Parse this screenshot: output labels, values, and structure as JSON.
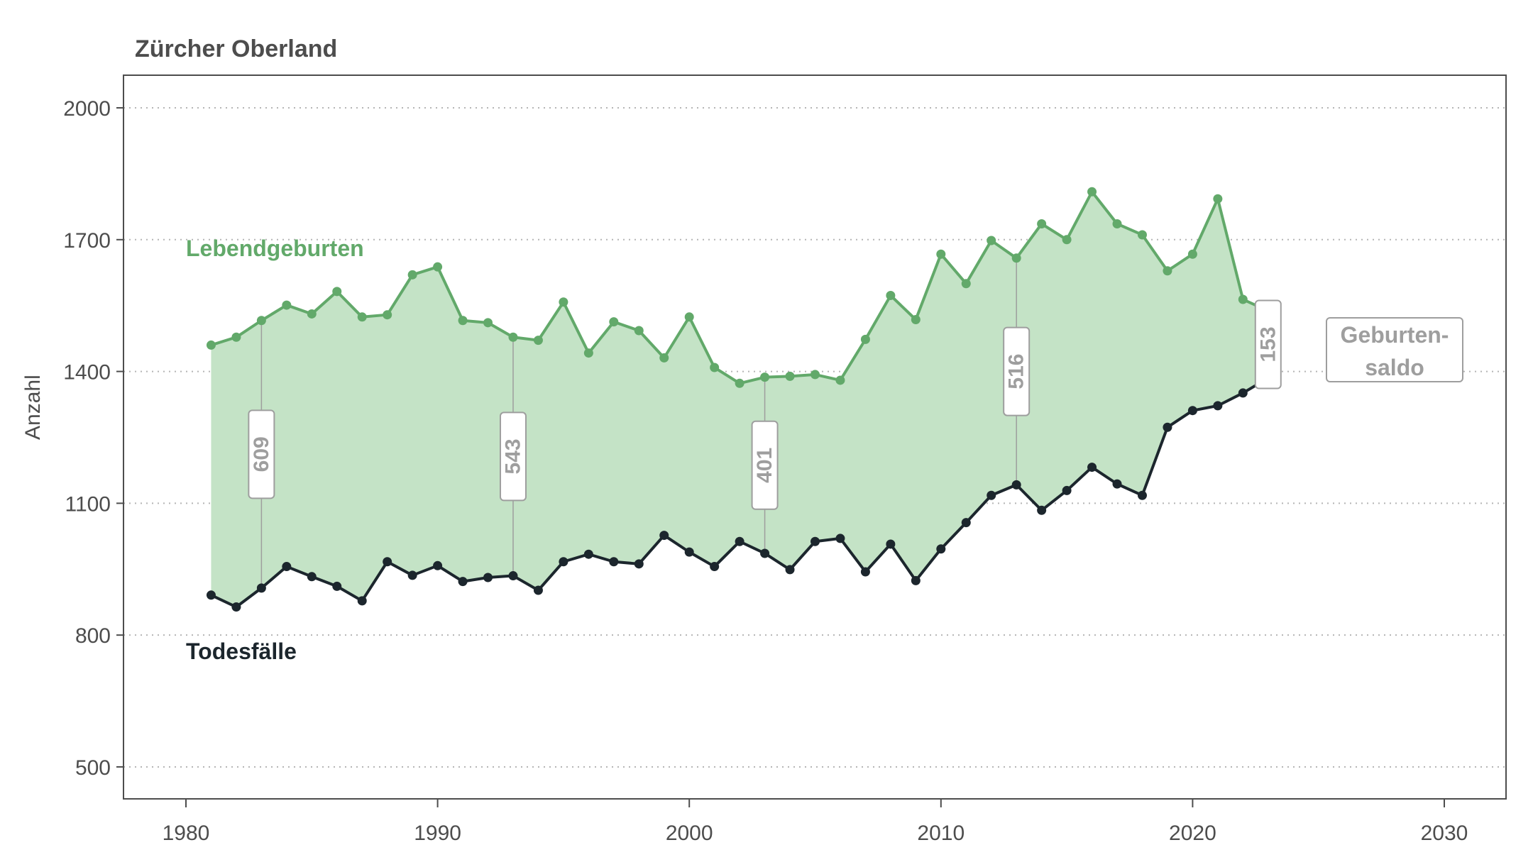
{
  "chart_data": {
    "type": "line",
    "title": "Zürcher Oberland",
    "xlabel": "",
    "ylabel": "Anzahl",
    "xlim": [
      1977.5,
      2032.5
    ],
    "ylim": [
      420,
      2070
    ],
    "xticks": [
      1980,
      1990,
      2000,
      2010,
      2020,
      2030
    ],
    "yticks": [
      500,
      800,
      1100,
      1400,
      1700,
      2000
    ],
    "grid": "horizontal dotted",
    "x": [
      1981,
      1982,
      1983,
      1984,
      1985,
      1986,
      1987,
      1988,
      1989,
      1990,
      1991,
      1992,
      1993,
      1994,
      1995,
      1996,
      1997,
      1998,
      1999,
      2000,
      2001,
      2002,
      2003,
      2004,
      2005,
      2006,
      2007,
      2008,
      2009,
      2010,
      2011,
      2012,
      2013,
      2014,
      2015,
      2016,
      2017,
      2018,
      2019,
      2020,
      2021,
      2022,
      2023
    ],
    "series": [
      {
        "name": "Lebendgeburten",
        "color": "#62a96a",
        "values": [
          1460,
          1478,
          1516,
          1551,
          1531,
          1582,
          1524,
          1529,
          1620,
          1638,
          1516,
          1511,
          1478,
          1471,
          1558,
          1442,
          1513,
          1493,
          1431,
          1524,
          1409,
          1373,
          1387,
          1389,
          1393,
          1380,
          1473,
          1573,
          1518,
          1667,
          1600,
          1698,
          1658,
          1736,
          1700,
          1809,
          1736,
          1711,
          1629,
          1667,
          1793,
          1564,
          1538
        ]
      },
      {
        "name": "Todesfälle",
        "color": "#1c262d",
        "values": [
          891,
          864,
          907,
          956,
          933,
          911,
          878,
          967,
          936,
          958,
          922,
          931,
          935,
          902,
          967,
          984,
          967,
          962,
          1027,
          989,
          956,
          1013,
          986,
          949,
          1013,
          1020,
          944,
          1007,
          924,
          996,
          1056,
          1118,
          1142,
          1084,
          1129,
          1182,
          1144,
          1118,
          1273,
          1311,
          1322,
          1351,
          1385
        ]
      }
    ],
    "fill_between": {
      "name": "Geburtensaldo",
      "color": "#c4e3c6"
    },
    "annotations": [
      {
        "year": 1983,
        "label": "609"
      },
      {
        "year": 1993,
        "label": "543"
      },
      {
        "year": 2003,
        "label": "401"
      },
      {
        "year": 2013,
        "label": "516"
      },
      {
        "year": 2023,
        "label": "153"
      }
    ],
    "legend": {
      "births_label": "Lebendgeburten",
      "deaths_label": "Todesfälle",
      "saldo_line1": "Geburten-",
      "saldo_line2": "saldo"
    }
  }
}
